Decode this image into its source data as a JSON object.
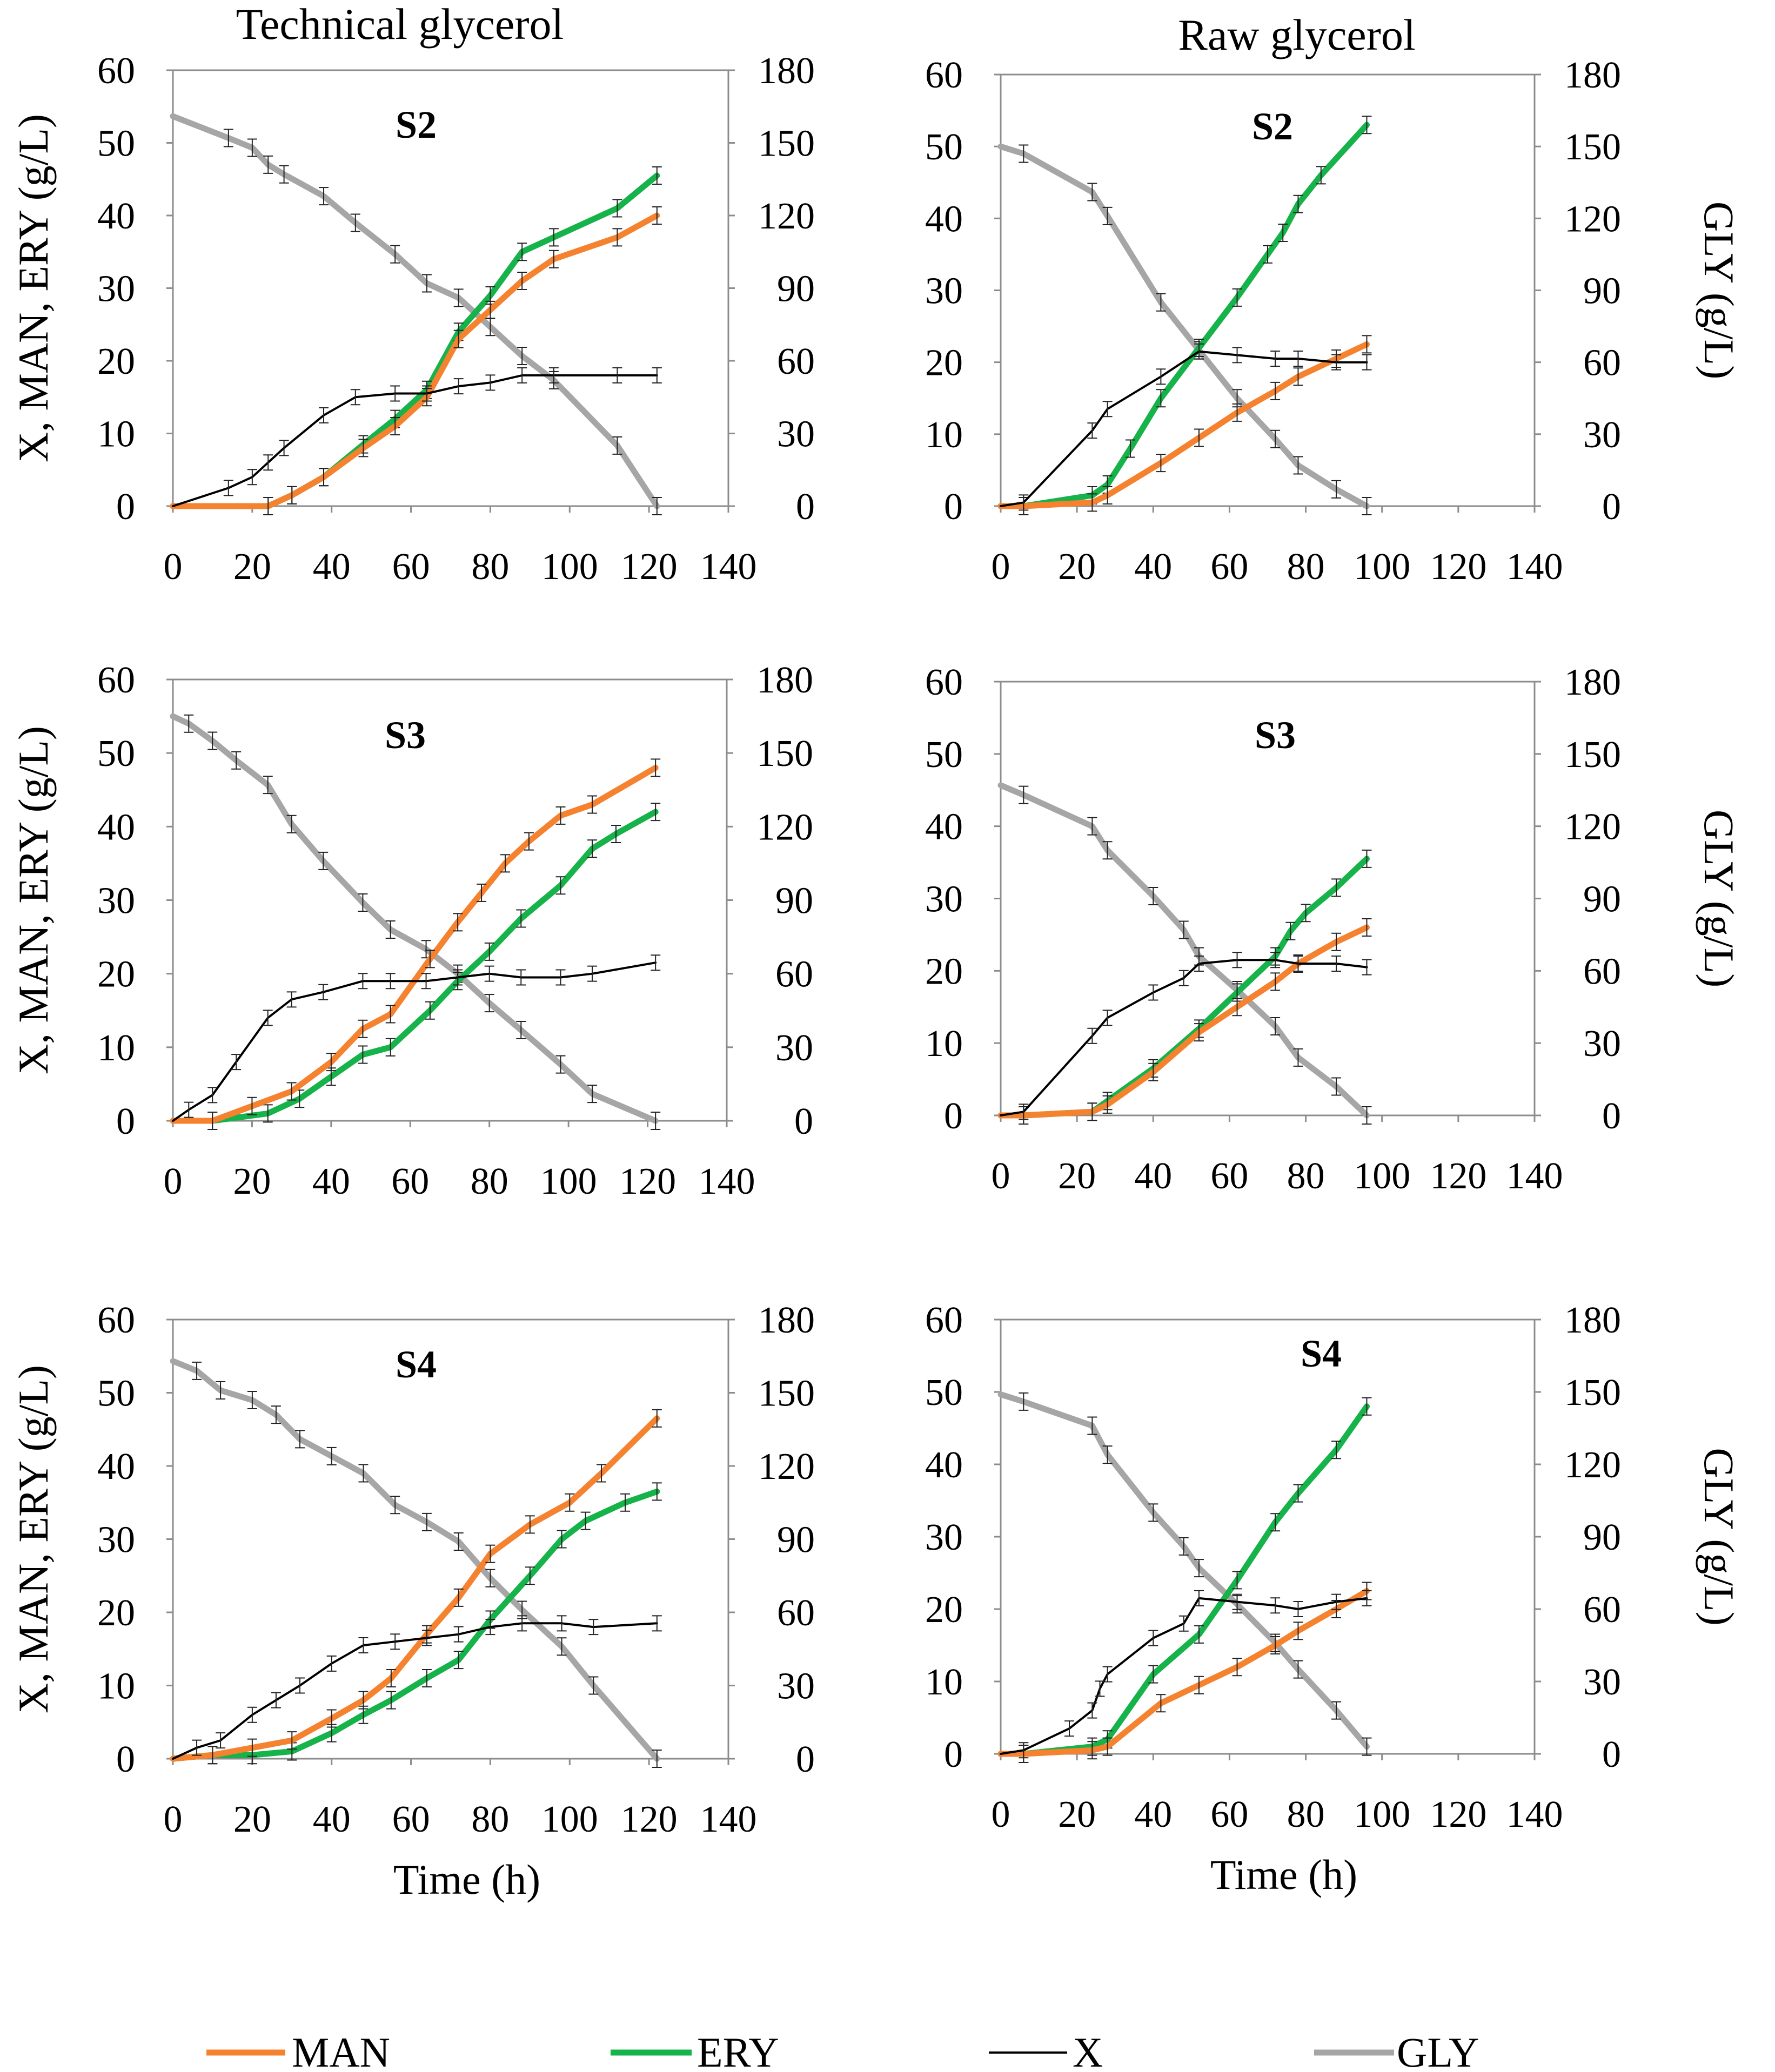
{
  "column_titles": [
    "Technical glycerol",
    "Raw glycerol"
  ],
  "left_axis_label": "X, MAN, ERY (g/L)",
  "right_axis_label": "GLY (g/L)",
  "x_axis_label": "Time (h)",
  "colors": {
    "MAN": "#f5822f",
    "ERY": "#16b24a",
    "X": "#000000",
    "GLY": "#a6a6a6"
  },
  "legend": [
    {
      "key": "MAN",
      "label": "MAN"
    },
    {
      "key": "ERY",
      "label": "ERY"
    },
    {
      "key": "X",
      "label": "X"
    },
    {
      "key": "GLY",
      "label": "GLY"
    }
  ],
  "chart_data": [
    {
      "type": "line",
      "column": "Technical glycerol",
      "title": "S2",
      "xlim": [
        0,
        140
      ],
      "xticks": [
        0,
        20,
        40,
        60,
        80,
        100,
        120,
        140
      ],
      "ylim": [
        0,
        60
      ],
      "yticks": [
        0,
        10,
        20,
        30,
        40,
        50,
        60
      ],
      "y2lim": [
        0,
        180
      ],
      "y2ticks": [
        0,
        30,
        60,
        90,
        120,
        150,
        180
      ],
      "series": [
        {
          "name": "MAN",
          "axis": "left",
          "x": [
            0,
            24,
            30,
            38,
            48,
            56,
            64,
            72,
            80,
            88,
            96,
            112,
            122
          ],
          "y": [
            0,
            0,
            1.5,
            4,
            8,
            11,
            15,
            23,
            27,
            31,
            34,
            37,
            40
          ]
        },
        {
          "name": "ERY",
          "axis": "left",
          "x": [
            0,
            24,
            30,
            38,
            48,
            56,
            64,
            72,
            80,
            88,
            96,
            112,
            122
          ],
          "y": [
            0,
            0,
            1.5,
            4,
            8.5,
            12,
            16,
            24,
            29,
            35,
            37,
            41,
            45.5
          ]
        },
        {
          "name": "X",
          "axis": "left",
          "x": [
            0,
            14,
            20,
            24,
            28,
            38,
            46,
            56,
            64,
            72,
            80,
            88,
            96,
            112,
            122
          ],
          "y": [
            0,
            2.5,
            4,
            6,
            8,
            12.5,
            15,
            15.5,
            15.5,
            16.5,
            17,
            18,
            18,
            18,
            18
          ]
        },
        {
          "name": "GLY",
          "axis": "right",
          "x": [
            0,
            14,
            20,
            24,
            28,
            38,
            46,
            56,
            64,
            72,
            80,
            88,
            96,
            112,
            122
          ],
          "y": [
            161,
            152,
            148,
            141,
            137,
            128,
            117,
            104,
            92,
            86,
            74,
            62,
            52,
            25,
            0
          ]
        }
      ]
    },
    {
      "type": "line",
      "column": "Raw glycerol",
      "title": "S2",
      "xlim": [
        0,
        140
      ],
      "xticks": [
        0,
        20,
        40,
        60,
        80,
        100,
        120,
        140
      ],
      "ylim": [
        0,
        60
      ],
      "yticks": [
        0,
        10,
        20,
        30,
        40,
        50,
        60
      ],
      "y2lim": [
        0,
        180
      ],
      "y2ticks": [
        0,
        30,
        60,
        90,
        120,
        150,
        180
      ],
      "series": [
        {
          "name": "MAN",
          "axis": "left",
          "x": [
            0,
            6,
            24,
            28,
            42,
            52,
            62,
            72,
            78,
            88,
            96
          ],
          "y": [
            0,
            0,
            0.5,
            1.5,
            6,
            9.5,
            13,
            16,
            18,
            20.5,
            22.5
          ]
        },
        {
          "name": "ERY",
          "axis": "left",
          "x": [
            0,
            6,
            24,
            28,
            34,
            42,
            52,
            62,
            70,
            74,
            78,
            84,
            96
          ],
          "y": [
            0,
            0,
            1.5,
            3,
            8,
            15,
            22,
            29,
            35,
            38,
            42,
            46,
            53
          ]
        },
        {
          "name": "X",
          "axis": "left",
          "x": [
            0,
            6,
            24,
            28,
            42,
            52,
            62,
            72,
            78,
            88,
            96
          ],
          "y": [
            0,
            0.5,
            10.5,
            13.5,
            18,
            21.5,
            21,
            20.5,
            20.5,
            20,
            20
          ]
        },
        {
          "name": "GLY",
          "axis": "right",
          "x": [
            0,
            6,
            24,
            28,
            42,
            52,
            62,
            72,
            78,
            88,
            96
          ],
          "y": [
            150,
            147,
            131,
            121,
            85,
            65,
            45,
            28,
            17,
            7,
            0
          ]
        }
      ]
    },
    {
      "type": "line",
      "column": "Technical glycerol",
      "title": "S3",
      "xlim": [
        0,
        140
      ],
      "xticks": [
        0,
        20,
        40,
        60,
        80,
        100,
        120,
        140
      ],
      "ylim": [
        0,
        60
      ],
      "yticks": [
        0,
        10,
        20,
        30,
        40,
        50,
        60
      ],
      "y2lim": [
        0,
        180
      ],
      "y2ticks": [
        0,
        30,
        60,
        90,
        120,
        150,
        180
      ],
      "series": [
        {
          "name": "MAN",
          "axis": "left",
          "x": [
            0,
            10,
            20,
            30,
            40,
            48,
            55,
            65,
            72,
            78,
            84,
            90,
            98,
            106,
            122
          ],
          "y": [
            0,
            0,
            2,
            4,
            8,
            12.5,
            14.5,
            22,
            27,
            31,
            35,
            38,
            41.5,
            43,
            48
          ]
        },
        {
          "name": "ERY",
          "axis": "left",
          "x": [
            0,
            10,
            24,
            32,
            40,
            48,
            55,
            65,
            72,
            80,
            88,
            98,
            106,
            112,
            122
          ],
          "y": [
            0,
            0,
            1,
            3,
            6,
            9,
            10,
            15,
            19,
            23,
            27.5,
            32,
            37,
            39,
            42
          ]
        },
        {
          "name": "X",
          "axis": "left",
          "x": [
            0,
            4,
            10,
            16,
            24,
            30,
            38,
            48,
            55,
            64,
            72,
            80,
            88,
            98,
            106,
            122
          ],
          "y": [
            0,
            1.5,
            3.5,
            8,
            14,
            16.5,
            17.5,
            19,
            19,
            19,
            19.5,
            20,
            19.5,
            19.5,
            20,
            21.5
          ]
        },
        {
          "name": "GLY",
          "axis": "right",
          "x": [
            0,
            4,
            10,
            16,
            24,
            30,
            38,
            48,
            55,
            64,
            72,
            80,
            88,
            98,
            106,
            122
          ],
          "y": [
            165,
            162,
            155,
            147,
            137,
            121,
            106,
            89,
            78,
            70,
            60,
            48,
            37,
            23,
            11,
            0
          ]
        }
      ]
    },
    {
      "type": "line",
      "column": "Raw glycerol",
      "title": "S3",
      "xlim": [
        0,
        140
      ],
      "xticks": [
        0,
        20,
        40,
        60,
        80,
        100,
        120,
        140
      ],
      "ylim": [
        0,
        60
      ],
      "yticks": [
        0,
        10,
        20,
        30,
        40,
        50,
        60
      ],
      "y2lim": [
        0,
        180
      ],
      "y2ticks": [
        0,
        30,
        60,
        90,
        120,
        150,
        180
      ],
      "series": [
        {
          "name": "MAN",
          "axis": "left",
          "x": [
            0,
            6,
            24,
            28,
            40,
            52,
            62,
            72,
            78,
            88,
            96
          ],
          "y": [
            0,
            0,
            0.5,
            1.5,
            6,
            11.5,
            15,
            18.5,
            21,
            24,
            26
          ]
        },
        {
          "name": "ERY",
          "axis": "left",
          "x": [
            0,
            6,
            24,
            28,
            40,
            52,
            62,
            72,
            76,
            80,
            88,
            96
          ],
          "y": [
            0,
            0,
            0.5,
            2,
            6.5,
            12,
            17,
            22,
            25.5,
            28,
            31.5,
            35.5
          ]
        },
        {
          "name": "X",
          "axis": "left",
          "x": [
            0,
            6,
            24,
            28,
            40,
            48,
            52,
            62,
            72,
            78,
            88,
            96
          ],
          "y": [
            0,
            0.5,
            11,
            13.5,
            17,
            19,
            21,
            21.5,
            21.5,
            21,
            21,
            20.5
          ]
        },
        {
          "name": "GLY",
          "axis": "right",
          "x": [
            0,
            6,
            24,
            28,
            40,
            48,
            52,
            62,
            72,
            78,
            88,
            96
          ],
          "y": [
            137,
            133,
            120,
            110,
            91,
            77,
            66,
            52,
            37,
            24,
            12,
            0
          ]
        }
      ]
    },
    {
      "type": "line",
      "column": "Technical glycerol",
      "title": "S4",
      "xlim": [
        0,
        140
      ],
      "xticks": [
        0,
        20,
        40,
        60,
        80,
        100,
        120,
        140
      ],
      "ylim": [
        0,
        60
      ],
      "yticks": [
        0,
        10,
        20,
        30,
        40,
        50,
        60
      ],
      "y2lim": [
        0,
        180
      ],
      "y2ticks": [
        0,
        30,
        60,
        90,
        120,
        150,
        180
      ],
      "series": [
        {
          "name": "MAN",
          "axis": "left",
          "x": [
            0,
            10,
            20,
            30,
            40,
            48,
            55,
            64,
            72,
            80,
            90,
            100,
            108,
            122
          ],
          "y": [
            0,
            0.5,
            1.5,
            2.5,
            5.5,
            8,
            11,
            17,
            22,
            28,
            32,
            35,
            39,
            46.5
          ]
        },
        {
          "name": "ERY",
          "axis": "left",
          "x": [
            0,
            10,
            20,
            30,
            40,
            48,
            55,
            64,
            72,
            80,
            90,
            98,
            104,
            114,
            122
          ],
          "y": [
            0,
            0.5,
            0.5,
            1,
            3.5,
            6,
            8,
            11,
            13.5,
            19,
            25,
            30,
            32.5,
            35,
            36.5
          ]
        },
        {
          "name": "X",
          "axis": "left",
          "x": [
            0,
            6,
            12,
            20,
            26,
            32,
            40,
            48,
            56,
            64,
            72,
            80,
            88,
            98,
            106,
            122
          ],
          "y": [
            0,
            1.5,
            2.5,
            6,
            8,
            10,
            13,
            15.5,
            16,
            16.5,
            17,
            18,
            18.5,
            18.5,
            18,
            18.5
          ]
        },
        {
          "name": "GLY",
          "axis": "right",
          "x": [
            0,
            6,
            12,
            20,
            26,
            32,
            40,
            48,
            56,
            64,
            72,
            80,
            88,
            98,
            106,
            122
          ],
          "y": [
            163,
            159,
            151,
            147,
            141,
            131,
            124,
            117,
            104,
            97,
            89,
            74,
            61,
            46,
            30,
            0
          ]
        }
      ]
    },
    {
      "type": "line",
      "column": "Raw glycerol",
      "title": "S4",
      "xlim": [
        0,
        140
      ],
      "xticks": [
        0,
        20,
        40,
        60,
        80,
        100,
        120,
        140
      ],
      "ylim": [
        0,
        60
      ],
      "yticks": [
        0,
        10,
        20,
        30,
        40,
        50,
        60
      ],
      "y2lim": [
        0,
        180
      ],
      "y2ticks": [
        0,
        30,
        60,
        90,
        120,
        150,
        180
      ],
      "series": [
        {
          "name": "MAN",
          "axis": "left",
          "x": [
            0,
            6,
            24,
            28,
            42,
            52,
            62,
            72,
            78,
            88,
            96
          ],
          "y": [
            0,
            0,
            0.5,
            1,
            7,
            9.5,
            12,
            15,
            17,
            20,
            22.5
          ]
        },
        {
          "name": "ERY",
          "axis": "left",
          "x": [
            0,
            6,
            24,
            28,
            40,
            52,
            62,
            72,
            78,
            88,
            96
          ],
          "y": [
            0,
            0,
            1,
            2,
            11,
            16.5,
            24,
            32,
            36,
            42,
            48
          ]
        },
        {
          "name": "X",
          "axis": "left",
          "x": [
            0,
            6,
            18,
            24,
            26,
            28,
            40,
            48,
            52,
            62,
            72,
            78,
            88,
            96
          ],
          "y": [
            0,
            0.5,
            3.5,
            6,
            9,
            11,
            16,
            18,
            21.5,
            21,
            20.5,
            20,
            21,
            21.5
          ]
        },
        {
          "name": "GLY",
          "axis": "right",
          "x": [
            0,
            6,
            24,
            28,
            40,
            48,
            52,
            62,
            72,
            78,
            88,
            96
          ],
          "y": [
            149,
            146,
            136,
            124,
            100,
            86,
            77,
            62,
            46,
            35,
            18,
            3
          ]
        }
      ]
    }
  ]
}
